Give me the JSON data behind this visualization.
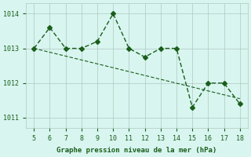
{
  "x": [
    5,
    6,
    7,
    8,
    9,
    10,
    11,
    12,
    13,
    14,
    15,
    16,
    17,
    18
  ],
  "y": [
    1013.0,
    1013.6,
    1013.0,
    1013.0,
    1013.2,
    1014.0,
    1013.0,
    1012.75,
    1013.0,
    1013.0,
    1011.3,
    1012.0,
    1012.0,
    1011.4
  ],
  "trend_x": [
    5,
    18
  ],
  "trend_y": [
    1013.0,
    1011.55
  ],
  "line_color": "#1a5e1a",
  "bg_color": "#d8f5f0",
  "grid_color": "#b0c8c0",
  "xlabel": "Graphe pression niveau de la mer (hPa)",
  "yticks": [
    1011,
    1012,
    1013,
    1014
  ],
  "xticks": [
    5,
    6,
    7,
    8,
    9,
    10,
    11,
    12,
    13,
    14,
    15,
    16,
    17,
    18
  ],
  "ylim": [
    1010.7,
    1014.3
  ],
  "xlim": [
    4.5,
    18.5
  ]
}
